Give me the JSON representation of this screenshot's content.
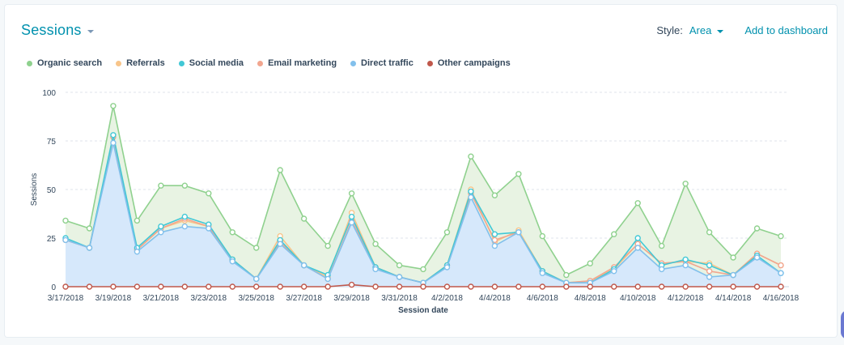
{
  "header": {
    "title": "Sessions",
    "style_label": "Style:",
    "style_value": "Area",
    "add_to_dashboard": "Add to dashboard"
  },
  "legend": [
    {
      "label": "Organic search",
      "color": "#8fd18e"
    },
    {
      "label": "Referrals",
      "color": "#f8c58a"
    },
    {
      "label": "Social media",
      "color": "#41c8d6"
    },
    {
      "label": "Email marketing",
      "color": "#f2a68f"
    },
    {
      "label": "Direct traffic",
      "color": "#82c0ec"
    },
    {
      "label": "Other campaigns",
      "color": "#c0584b"
    }
  ],
  "chart_data": {
    "type": "area",
    "stacked": false,
    "xlabel": "Session date",
    "ylabel": "Sessions",
    "ylim": [
      0,
      100
    ],
    "yticks": [
      0,
      25,
      50,
      75,
      100
    ],
    "x": [
      "3/17/2018",
      "3/18/2018",
      "3/19/2018",
      "3/20/2018",
      "3/21/2018",
      "3/22/2018",
      "3/23/2018",
      "3/24/2018",
      "3/25/2018",
      "3/26/2018",
      "3/27/2018",
      "3/28/2018",
      "3/29/2018",
      "3/30/2018",
      "3/31/2018",
      "4/1/2018",
      "4/2/2018",
      "4/3/2018",
      "4/4/2018",
      "4/5/2018",
      "4/6/2018",
      "4/7/2018",
      "4/8/2018",
      "4/9/2018",
      "4/10/2018",
      "4/11/2018",
      "4/12/2018",
      "4/13/2018",
      "4/14/2018",
      "4/15/2018",
      "4/16/2018"
    ],
    "xtick_labels": [
      "3/17/2018",
      "3/19/2018",
      "3/21/2018",
      "3/23/2018",
      "3/25/2018",
      "3/27/2018",
      "3/29/2018",
      "3/31/2018",
      "4/2/2018",
      "4/4/2018",
      "4/6/2018",
      "4/8/2018",
      "4/10/2018",
      "4/12/2018",
      "4/14/2018",
      "4/16/2018"
    ],
    "series": [
      {
        "name": "Organic search",
        "color": "#8fd18e",
        "fill": "#e8f3e3",
        "values": [
          34,
          30,
          93,
          34,
          52,
          52,
          48,
          28,
          20,
          60,
          35,
          21,
          48,
          22,
          11,
          9,
          28,
          67,
          47,
          58,
          26,
          6,
          12,
          27,
          43,
          21,
          53,
          28,
          15,
          30,
          26
        ]
      },
      {
        "name": "Referrals",
        "color": "#f8c58a",
        "fill": "none",
        "values": [
          24,
          20,
          77,
          19,
          30,
          34,
          31,
          14,
          4,
          26,
          11,
          5,
          38,
          10,
          5,
          2,
          11,
          50,
          23,
          29,
          8,
          2,
          3,
          9,
          22,
          12,
          13,
          12,
          6,
          17,
          11
        ]
      },
      {
        "name": "Social media",
        "color": "#41c8d6",
        "fill": "none",
        "values": [
          25,
          20,
          78,
          20,
          31,
          36,
          32,
          14,
          4,
          24,
          11,
          6,
          36,
          10,
          5,
          2,
          11,
          49,
          27,
          28,
          8,
          2,
          2,
          9,
          25,
          11,
          14,
          11,
          6,
          16,
          7
        ]
      },
      {
        "name": "Email marketing",
        "color": "#f2a68f",
        "fill": "none",
        "values": [
          24,
          20,
          77,
          19,
          30,
          35,
          31,
          14,
          4,
          23,
          11,
          4,
          34,
          10,
          5,
          2,
          11,
          48,
          24,
          28,
          8,
          2,
          3,
          10,
          22,
          12,
          13,
          8,
          6,
          17,
          11
        ]
      },
      {
        "name": "Direct traffic",
        "color": "#82c0ec",
        "fill": "#d6e8fb",
        "values": [
          24,
          20,
          74,
          18,
          28,
          31,
          30,
          13,
          4,
          22,
          11,
          4,
          33,
          9,
          5,
          2,
          10,
          46,
          21,
          28,
          7,
          2,
          2,
          8,
          20,
          9,
          11,
          5,
          6,
          15,
          7
        ]
      },
      {
        "name": "Other campaigns",
        "color": "#c0584b",
        "fill": "none",
        "values": [
          0,
          0,
          0,
          0,
          0,
          0,
          0,
          0,
          0,
          0,
          0,
          0,
          1,
          0,
          0,
          0,
          0,
          0,
          0,
          0,
          0,
          0,
          0,
          0,
          0,
          0,
          0,
          0,
          0,
          0,
          0
        ]
      }
    ]
  }
}
